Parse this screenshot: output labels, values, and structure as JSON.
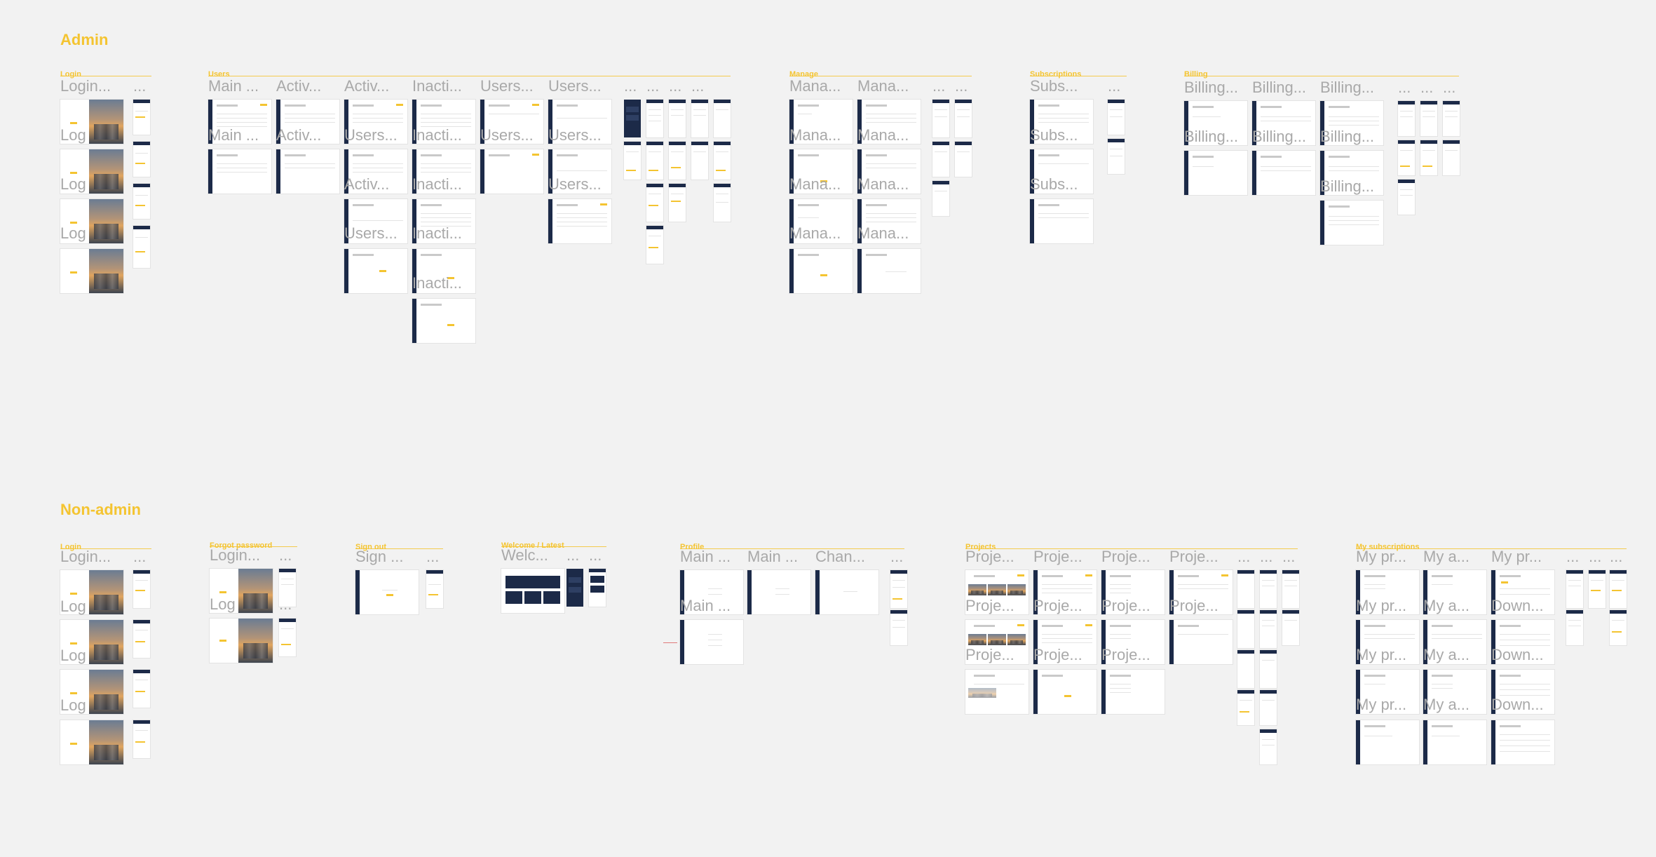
{
  "sections": {
    "admin": {
      "title": "Admin"
    },
    "nonadmin": {
      "title": "Non-admin"
    }
  },
  "groups": {
    "admin_login": "Login",
    "users": "Users",
    "manage": "Manage",
    "subscriptions": "Subscriptions",
    "billing": "Billing",
    "na_login": "Login",
    "forgot_password": "Forgot password",
    "sign_out": "Sign out",
    "welcome": "Welcome / Latest",
    "profile": "Profile",
    "projects": "Projects",
    "my_subscriptions": "My subscriptions"
  },
  "frame_titles": {
    "admin_login": [
      "Login...",
      "...",
      "Log",
      "Log",
      "Log"
    ],
    "users_top": [
      "Main ...",
      "Activ...",
      "Activ...",
      "Inacti...",
      "Users...",
      "Users...",
      "...",
      "...",
      "...",
      "..."
    ],
    "users_inner": [
      "Main ...",
      "Activ...",
      "Users...",
      "Inacti...",
      "Users...",
      "Users...",
      "Activ...",
      "Inacti...",
      "Users...",
      "Users...",
      "Inacti...",
      "Inacti..."
    ],
    "manage": [
      "Mana...",
      "Mana...",
      "...",
      "...",
      "Mana...",
      "Mana...",
      "Mana...",
      "Mana...",
      "Mana...",
      "Mana..."
    ],
    "subscriptions": [
      "Subs...",
      "...",
      "Subs...",
      "Subs..."
    ],
    "billing": [
      "Billing...",
      "Billing...",
      "Billing...",
      "...",
      "...",
      "...",
      "Billing...",
      "Billing...",
      "Billing...",
      "Billing..."
    ],
    "na_login": [
      "Login...",
      "...",
      "Log",
      "Log",
      "Log"
    ],
    "forgot": [
      "Login...",
      "...",
      "Log",
      "..."
    ],
    "signout": [
      "Sign ...",
      "..."
    ],
    "welcome": [
      "Welc...",
      "...",
      "..."
    ],
    "profile": [
      "Main ...",
      "Main ...",
      "Chan...",
      "...",
      "Main ..."
    ],
    "projects": [
      "Proje...",
      "Proje...",
      "Proje...",
      "Proje...",
      "...",
      "...",
      "...",
      "Proje...",
      "Proje...",
      "Proje...",
      "Proje...",
      "Proje...",
      "Proje...",
      "Proje..."
    ],
    "mysubs": [
      "My pr...",
      "My  a...",
      "My pr...",
      "...",
      "...",
      "...",
      "My pr...",
      "My  a...",
      "Down...",
      "My pr...",
      "My  a...",
      "Down...",
      "My pr...",
      "My  a...",
      "Down..."
    ]
  },
  "colors": {
    "accent": "#f4c431",
    "navy": "#1c2a48",
    "canvas": "#f2f2f2",
    "title_gray": "#a9a9a9"
  }
}
